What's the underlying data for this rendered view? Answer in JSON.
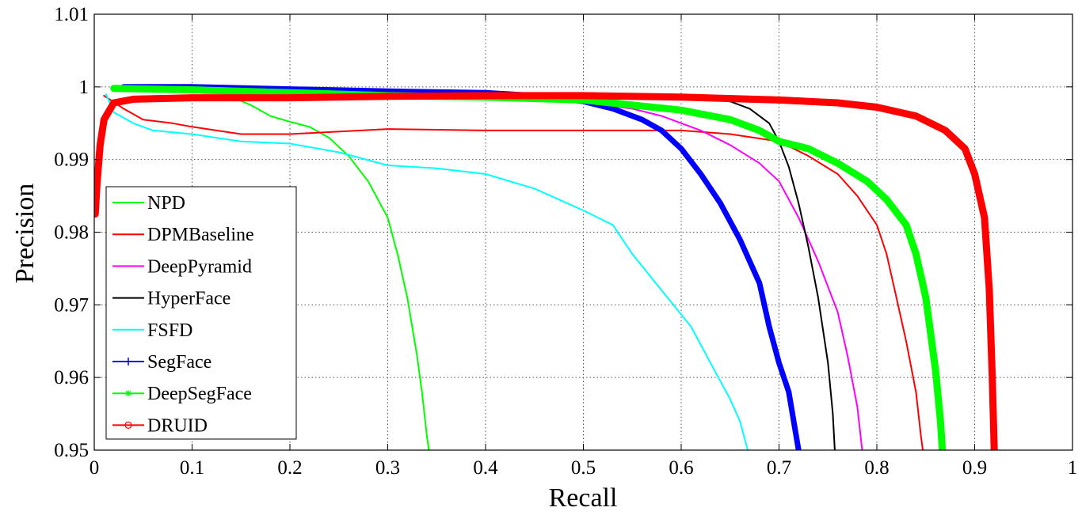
{
  "chart_data": {
    "type": "line",
    "title": "",
    "xlabel": "Recall",
    "ylabel": "Precision",
    "xlim": [
      0,
      1
    ],
    "ylim": [
      0.95,
      1.01
    ],
    "xticks": [
      "0",
      "0.1",
      "0.2",
      "0.3",
      "0.4",
      "0.5",
      "0.6",
      "0.7",
      "0.8",
      "0.9",
      "1"
    ],
    "yticks": [
      "0.95",
      "0.96",
      "0.97",
      "0.98",
      "0.99",
      "1",
      "1.01"
    ],
    "grid": true,
    "legend_position": "lower-left",
    "series": [
      {
        "name": "NPD",
        "color": "#00ff00",
        "width": 2,
        "marker": "none",
        "points": [
          [
            0.03,
            0.9995
          ],
          [
            0.08,
            0.9997
          ],
          [
            0.13,
            0.9992
          ],
          [
            0.16,
            0.9975
          ],
          [
            0.18,
            0.996
          ],
          [
            0.2,
            0.9952
          ],
          [
            0.22,
            0.9945
          ],
          [
            0.24,
            0.993
          ],
          [
            0.26,
            0.9905
          ],
          [
            0.28,
            0.987
          ],
          [
            0.3,
            0.982
          ],
          [
            0.31,
            0.977
          ],
          [
            0.32,
            0.971
          ],
          [
            0.33,
            0.963
          ],
          [
            0.335,
            0.958
          ],
          [
            0.34,
            0.952
          ],
          [
            0.342,
            0.95
          ]
        ]
      },
      {
        "name": "DPMBaseline",
        "color": "#ff0000",
        "width": 2,
        "marker": "none",
        "points": [
          [
            0.01,
            0.9988
          ],
          [
            0.03,
            0.997
          ],
          [
            0.05,
            0.9955
          ],
          [
            0.08,
            0.995
          ],
          [
            0.1,
            0.9945
          ],
          [
            0.15,
            0.9935
          ],
          [
            0.2,
            0.9935
          ],
          [
            0.3,
            0.9942
          ],
          [
            0.4,
            0.994
          ],
          [
            0.5,
            0.994
          ],
          [
            0.55,
            0.994
          ],
          [
            0.6,
            0.994
          ],
          [
            0.65,
            0.9935
          ],
          [
            0.7,
            0.9925
          ],
          [
            0.73,
            0.9905
          ],
          [
            0.76,
            0.988
          ],
          [
            0.78,
            0.985
          ],
          [
            0.8,
            0.981
          ],
          [
            0.81,
            0.977
          ],
          [
            0.82,
            0.971
          ],
          [
            0.83,
            0.965
          ],
          [
            0.84,
            0.958
          ],
          [
            0.845,
            0.952
          ],
          [
            0.847,
            0.95
          ]
        ]
      },
      {
        "name": "DeepPyramid",
        "color": "#ff00ff",
        "width": 2,
        "marker": "none",
        "points": [
          [
            0.2,
            0.999
          ],
          [
            0.3,
            0.9988
          ],
          [
            0.4,
            0.9985
          ],
          [
            0.5,
            0.9978
          ],
          [
            0.55,
            0.997
          ],
          [
            0.58,
            0.996
          ],
          [
            0.62,
            0.994
          ],
          [
            0.65,
            0.992
          ],
          [
            0.68,
            0.9895
          ],
          [
            0.7,
            0.987
          ],
          [
            0.72,
            0.982
          ],
          [
            0.74,
            0.976
          ],
          [
            0.76,
            0.969
          ],
          [
            0.77,
            0.963
          ],
          [
            0.78,
            0.956
          ],
          [
            0.785,
            0.95
          ]
        ]
      },
      {
        "name": "HyperFace",
        "color": "#000000",
        "width": 2,
        "marker": "none",
        "points": [
          [
            0.4,
            0.999
          ],
          [
            0.5,
            0.999
          ],
          [
            0.6,
            0.9988
          ],
          [
            0.65,
            0.998
          ],
          [
            0.67,
            0.997
          ],
          [
            0.69,
            0.995
          ],
          [
            0.7,
            0.9925
          ],
          [
            0.71,
            0.989
          ],
          [
            0.72,
            0.984
          ],
          [
            0.73,
            0.978
          ],
          [
            0.74,
            0.971
          ],
          [
            0.75,
            0.962
          ],
          [
            0.755,
            0.955
          ],
          [
            0.757,
            0.95
          ]
        ]
      },
      {
        "name": "FSFD",
        "color": "#00ffff",
        "width": 2,
        "marker": "none",
        "points": [
          [
            0.012,
            0.999
          ],
          [
            0.02,
            0.9965
          ],
          [
            0.04,
            0.995
          ],
          [
            0.06,
            0.994
          ],
          [
            0.1,
            0.9935
          ],
          [
            0.15,
            0.9925
          ],
          [
            0.2,
            0.9922
          ],
          [
            0.25,
            0.991
          ],
          [
            0.3,
            0.9892
          ],
          [
            0.35,
            0.9888
          ],
          [
            0.4,
            0.988
          ],
          [
            0.45,
            0.986
          ],
          [
            0.5,
            0.983
          ],
          [
            0.53,
            0.981
          ],
          [
            0.55,
            0.977
          ],
          [
            0.58,
            0.972
          ],
          [
            0.61,
            0.967
          ],
          [
            0.63,
            0.962
          ],
          [
            0.65,
            0.957
          ],
          [
            0.66,
            0.954
          ],
          [
            0.668,
            0.95
          ]
        ]
      },
      {
        "name": "SegFace",
        "color": "#0000ff",
        "width": 7,
        "marker": "plus",
        "points": [
          [
            0.03,
            1.0
          ],
          [
            0.1,
            1.0
          ],
          [
            0.2,
            0.9997
          ],
          [
            0.3,
            0.9994
          ],
          [
            0.4,
            0.9992
          ],
          [
            0.45,
            0.9988
          ],
          [
            0.5,
            0.998
          ],
          [
            0.53,
            0.997
          ],
          [
            0.56,
            0.9955
          ],
          [
            0.58,
            0.994
          ],
          [
            0.6,
            0.9915
          ],
          [
            0.62,
            0.988
          ],
          [
            0.64,
            0.984
          ],
          [
            0.66,
            0.979
          ],
          [
            0.68,
            0.973
          ],
          [
            0.69,
            0.967
          ],
          [
            0.7,
            0.962
          ],
          [
            0.71,
            0.958
          ],
          [
            0.72,
            0.95
          ]
        ]
      },
      {
        "name": "DeepSegFace",
        "color": "#00ff00",
        "width": 9,
        "marker": "star",
        "points": [
          [
            0.02,
            0.9998
          ],
          [
            0.1,
            0.9996
          ],
          [
            0.2,
            0.9992
          ],
          [
            0.3,
            0.9988
          ],
          [
            0.4,
            0.9986
          ],
          [
            0.5,
            0.9982
          ],
          [
            0.55,
            0.9975
          ],
          [
            0.6,
            0.9968
          ],
          [
            0.65,
            0.9955
          ],
          [
            0.68,
            0.994
          ],
          [
            0.7,
            0.9925
          ],
          [
            0.73,
            0.9915
          ],
          [
            0.76,
            0.9895
          ],
          [
            0.79,
            0.987
          ],
          [
            0.81,
            0.9845
          ],
          [
            0.83,
            0.981
          ],
          [
            0.84,
            0.977
          ],
          [
            0.85,
            0.971
          ],
          [
            0.86,
            0.961
          ],
          [
            0.865,
            0.954
          ],
          [
            0.867,
            0.95
          ]
        ]
      },
      {
        "name": "DRUID",
        "color": "#ff0000",
        "width": 9,
        "marker": "circle",
        "points": [
          [
            0.001,
            0.9825
          ],
          [
            0.003,
            0.987
          ],
          [
            0.006,
            0.992
          ],
          [
            0.01,
            0.9955
          ],
          [
            0.02,
            0.9978
          ],
          [
            0.04,
            0.9983
          ],
          [
            0.1,
            0.9985
          ],
          [
            0.2,
            0.9985
          ],
          [
            0.3,
            0.9987
          ],
          [
            0.4,
            0.9988
          ],
          [
            0.5,
            0.9988
          ],
          [
            0.6,
            0.9986
          ],
          [
            0.7,
            0.9982
          ],
          [
            0.76,
            0.9978
          ],
          [
            0.8,
            0.9972
          ],
          [
            0.84,
            0.996
          ],
          [
            0.87,
            0.994
          ],
          [
            0.89,
            0.9915
          ],
          [
            0.9,
            0.988
          ],
          [
            0.91,
            0.982
          ],
          [
            0.915,
            0.972
          ],
          [
            0.918,
            0.96
          ],
          [
            0.92,
            0.95
          ]
        ]
      }
    ]
  }
}
